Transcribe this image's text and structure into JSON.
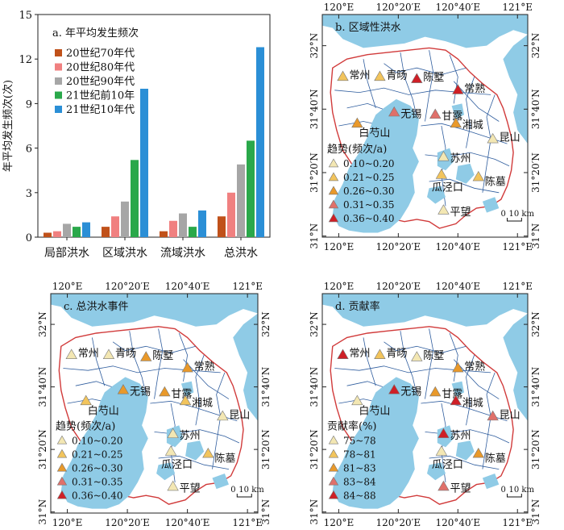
{
  "chart_data": [
    {
      "type": "bar",
      "panel_title": "a. 年平均发生频次",
      "ylabel": "年平均发生频次(次)",
      "categories": [
        "局部洪水",
        "区域洪水",
        "流域洪水",
        "总洪水"
      ],
      "ylim": [
        0,
        15
      ],
      "yticks": [
        "0",
        "3",
        "6",
        "9",
        "12",
        "15"
      ],
      "legend_position": "upper-left",
      "series": [
        {
          "name": "20世纪70年代",
          "color": "#c0511a",
          "values": [
            0.3,
            0.7,
            0.4,
            1.4
          ]
        },
        {
          "name": "20世纪80年代",
          "color": "#f08080",
          "values": [
            0.4,
            1.4,
            1.1,
            3.0
          ]
        },
        {
          "name": "20世纪90年代",
          "color": "#a6a6a6",
          "values": [
            0.9,
            2.4,
            1.6,
            4.9
          ]
        },
        {
          "name": "21世纪前10年",
          "color": "#2aa84a",
          "values": [
            0.7,
            5.2,
            0.7,
            6.5
          ]
        },
        {
          "name": "21世纪10年代",
          "color": "#2b8fd6",
          "values": [
            1.0,
            10.0,
            1.8,
            12.8
          ]
        }
      ]
    },
    {
      "type": "map",
      "panel_title": "b. 区域性洪水",
      "legend_title": "趋势(频次/a)",
      "legend_items": [
        "0.10~0.20",
        "0.21~0.25",
        "0.26~0.30",
        "0.31~0.35",
        "0.36~0.40"
      ],
      "stations": [
        {
          "name": "常州",
          "cls": 1
        },
        {
          "name": "青旸",
          "cls": 1
        },
        {
          "name": "陈墅",
          "cls": 4
        },
        {
          "name": "常熟",
          "cls": 4
        },
        {
          "name": "无锡",
          "cls": 3
        },
        {
          "name": "甘露",
          "cls": 3
        },
        {
          "name": "湘城",
          "cls": 2
        },
        {
          "name": "白芍山",
          "cls": 2
        },
        {
          "name": "昆山",
          "cls": 0
        },
        {
          "name": "苏州",
          "cls": 0
        },
        {
          "name": "瓜泾口",
          "cls": 1
        },
        {
          "name": "陈墓",
          "cls": 1
        },
        {
          "name": "平望",
          "cls": 0
        }
      ]
    },
    {
      "type": "map",
      "panel_title": "c. 总洪水事件",
      "legend_title": "趋势(频次/a)",
      "legend_items": [
        "0.10~0.20",
        "0.21~0.25",
        "0.26~0.30",
        "0.31~0.35",
        "0.36~0.40"
      ],
      "stations": [
        {
          "name": "常州",
          "cls": 0
        },
        {
          "name": "青旸",
          "cls": 0
        },
        {
          "name": "陈墅",
          "cls": 2
        },
        {
          "name": "常熟",
          "cls": 2
        },
        {
          "name": "无锡",
          "cls": 2
        },
        {
          "name": "甘露",
          "cls": 2
        },
        {
          "name": "湘城",
          "cls": 1
        },
        {
          "name": "白芍山",
          "cls": 1
        },
        {
          "name": "昆山",
          "cls": 0
        },
        {
          "name": "苏州",
          "cls": 0
        },
        {
          "name": "瓜泾口",
          "cls": 0
        },
        {
          "name": "陈墓",
          "cls": 1
        },
        {
          "name": "平望",
          "cls": 0
        }
      ]
    },
    {
      "type": "map",
      "panel_title": "d. 贡献率",
      "legend_title": "贡献率(%)",
      "legend_items": [
        "75~78",
        "78~81",
        "81~83",
        "83~84",
        "84~88"
      ],
      "stations": [
        {
          "name": "常州",
          "cls": 4
        },
        {
          "name": "青旸",
          "cls": 1
        },
        {
          "name": "陈墅",
          "cls": 0
        },
        {
          "name": "常熟",
          "cls": 2
        },
        {
          "name": "无锡",
          "cls": 4
        },
        {
          "name": "甘露",
          "cls": 2
        },
        {
          "name": "湘城",
          "cls": 4
        },
        {
          "name": "白芍山",
          "cls": 0
        },
        {
          "name": "昆山",
          "cls": 3
        },
        {
          "name": "苏州",
          "cls": 4
        },
        {
          "name": "瓜泾口",
          "cls": 0
        },
        {
          "name": "陈墓",
          "cls": 2
        },
        {
          "name": "平望",
          "cls": 3
        }
      ]
    }
  ],
  "map_axes": {
    "x_ticks": [
      "120°E",
      "120°20′E",
      "120°40′E",
      "121°E"
    ],
    "y_ticks": [
      "32°N",
      "31°40′N",
      "31°20′N",
      "31°N"
    ],
    "scale_label": "10 km",
    "scale_zero": "0"
  },
  "colors": {
    "water": "#8fcbe6",
    "boundary": "#d13b3b",
    "river": "#2f5d9e",
    "classes": [
      "#f3e7b3",
      "#f2c45c",
      "#e9992a",
      "#e0706a",
      "#cf1f26"
    ]
  }
}
